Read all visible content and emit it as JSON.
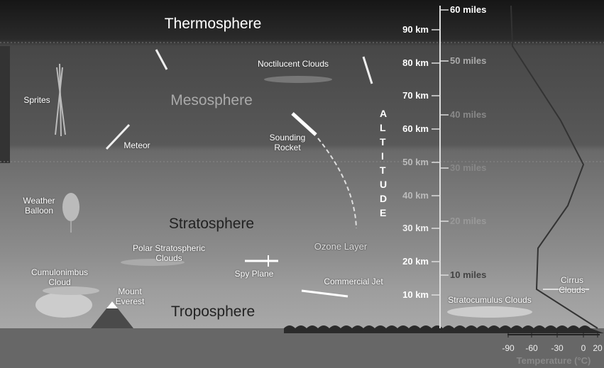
{
  "layers": [
    "Thermosphere",
    "Mesosphere",
    "Stratosphere",
    "Troposphere"
  ],
  "objects": [
    "Sprites",
    "Meteor",
    "Noctilucent Clouds",
    "Sounding Rocket",
    "Weather Balloon",
    "Polar Stratospheric Clouds",
    "Spy Plane",
    "Ozone Layer",
    "Cumulonimbus Cloud",
    "Mount Everest",
    "Commercial Jet",
    "Stratocumulus Clouds",
    "Cirrus Clouds"
  ],
  "altitude_km": [
    "90 km",
    "80 km",
    "70 km",
    "60 km",
    "50 km",
    "40 km",
    "30 km",
    "20 km",
    "10 km"
  ],
  "altitude_miles": [
    "60 miles",
    "50 miles",
    "40 miles",
    "30 miles",
    "20 miles",
    "10 miles"
  ],
  "altitude_title": "ALTITUDE",
  "temperature": {
    "ticks": [
      "-90",
      "-60",
      "-30",
      "0",
      "20"
    ],
    "label": "Temperature (°C)"
  }
}
